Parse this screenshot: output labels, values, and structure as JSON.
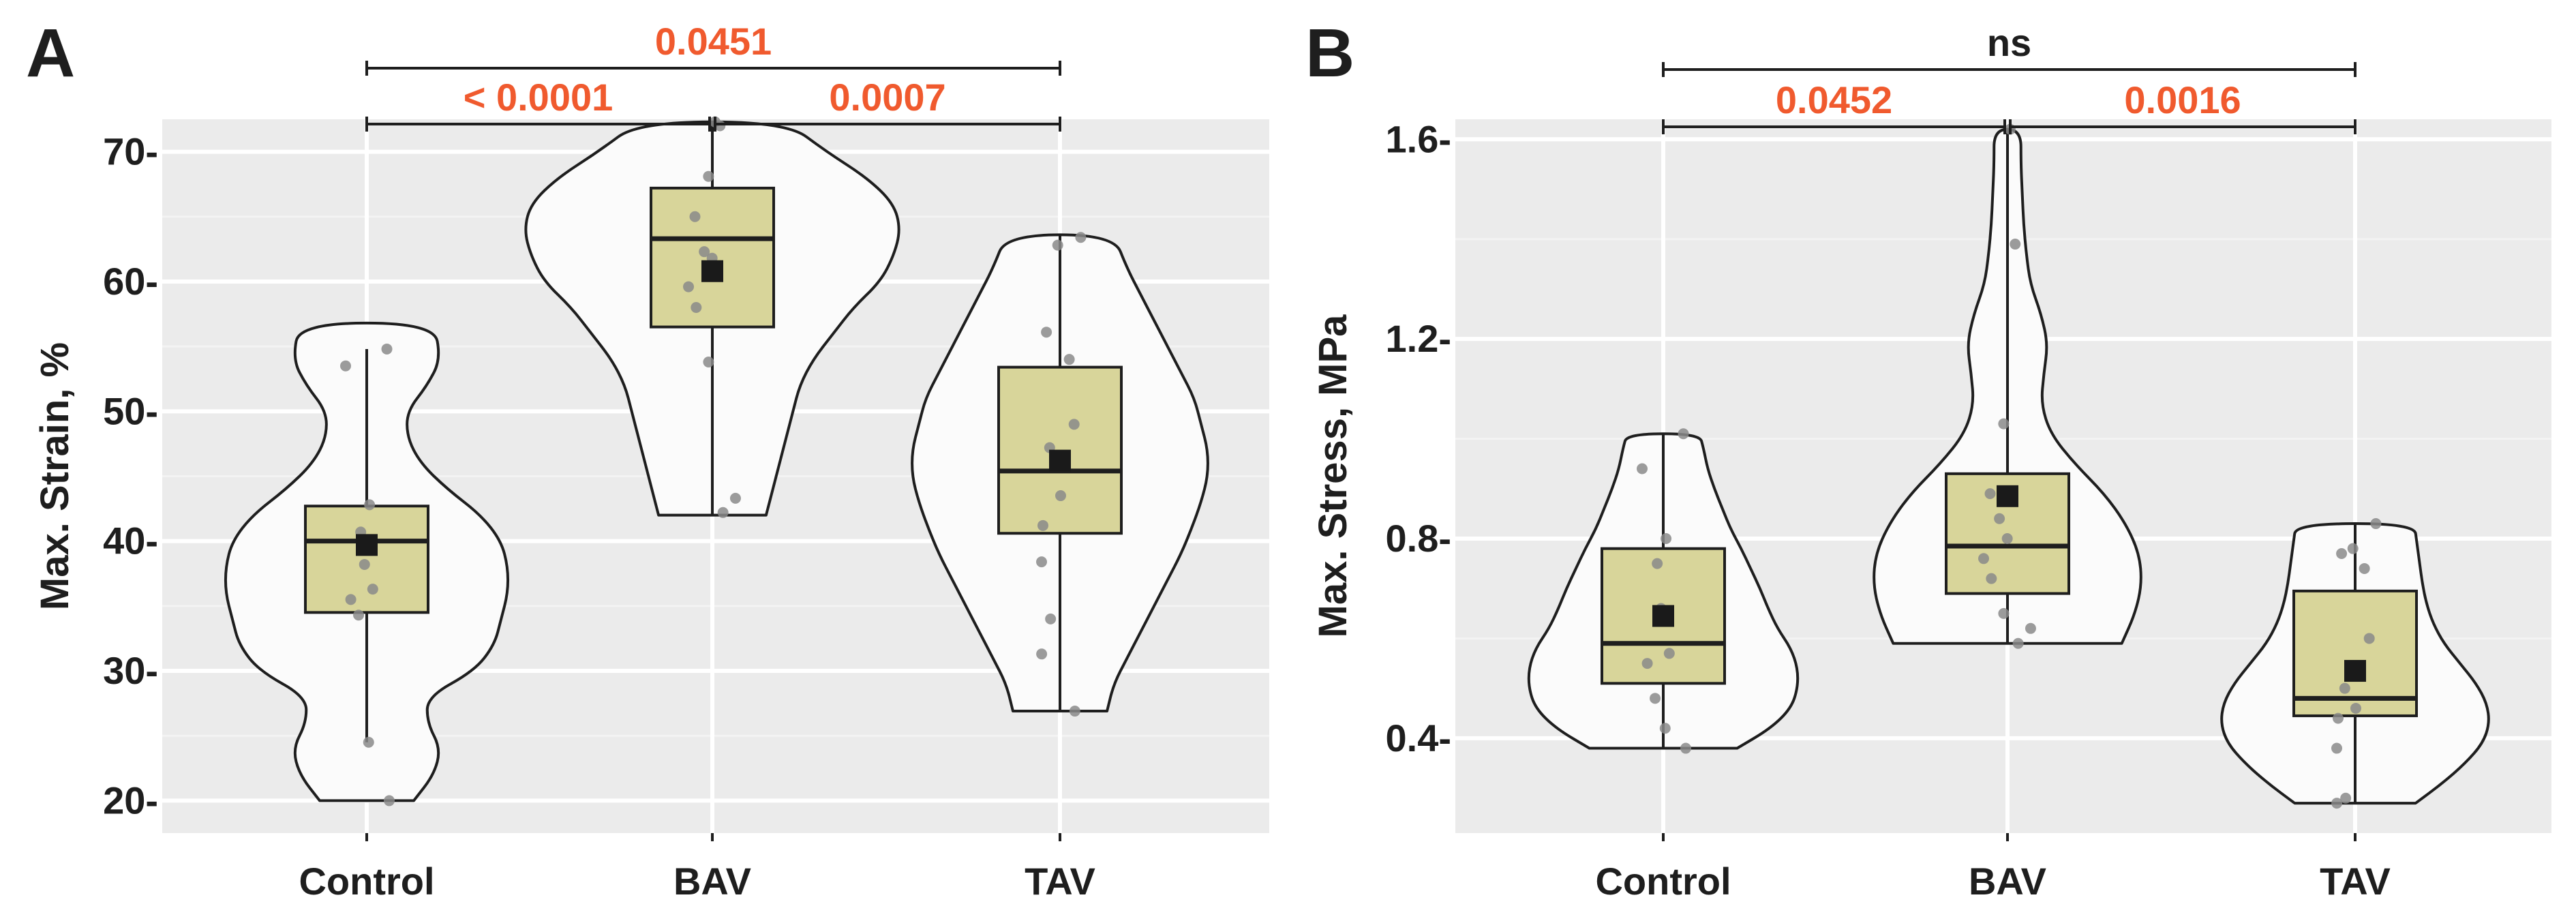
{
  "colors": {
    "panel_bg": "#ebebeb",
    "grid_major": "#ffffff",
    "grid_minor": "#f3f3f3",
    "violin_fill": "#fbfbfb",
    "violin_stroke": "#1e1e1e",
    "box_fill": "#d8d59a",
    "point": "#8a8a8a",
    "mean_marker": "#1a1a1a",
    "significant": "#f05a2e",
    "not_significant": "#1e1e1e",
    "text": "#1e1e1e"
  },
  "chart_data": [
    {
      "panel": "A",
      "type": "violin",
      "title": "",
      "xlabel": "",
      "ylabel": "Max. Strain, %",
      "ylim": [
        17.5,
        72.5
      ],
      "yticks": [
        20,
        30,
        40,
        50,
        60,
        70
      ],
      "ytick_labels": [
        "20-",
        "30-",
        "40-",
        "50-",
        "60-",
        "70-"
      ],
      "categories": [
        "Control",
        "BAV",
        "TAV"
      ],
      "groups": [
        {
          "name": "Control",
          "range": [
            20.0,
            56.8
          ],
          "density_y": [
            20.0,
            22.0,
            24.0,
            26.0,
            28.0,
            30.0,
            32.0,
            34.0,
            36.0,
            38.0,
            40.0,
            42.0,
            44.0,
            46.0,
            48.0,
            50.0,
            52.0,
            54.0,
            56.8
          ],
          "density_w": [
            0.35,
            0.5,
            0.55,
            0.45,
            0.45,
            0.8,
            0.95,
            1.0,
            1.05,
            1.05,
            1.0,
            0.85,
            0.6,
            0.4,
            0.3,
            0.3,
            0.45,
            0.55,
            0.5
          ],
          "box": {
            "q1": 34.5,
            "median": 40.0,
            "q3": 42.7,
            "whisker_low": 24.5,
            "whisker_high": 54.8,
            "mean": 39.7
          },
          "points": [
            54.8,
            53.5,
            42.8,
            40.7,
            38.2,
            36.3,
            35.5,
            34.3,
            24.5,
            20.0
          ]
        },
        {
          "name": "BAV",
          "range": [
            42.0,
            72.3
          ],
          "density_y": [
            42.0,
            44.0,
            46.0,
            48.0,
            50.0,
            52.0,
            54.0,
            56.0,
            58.0,
            60.0,
            62.0,
            64.0,
            66.0,
            68.0,
            70.0,
            72.3
          ],
          "density_w": [
            0.4,
            0.45,
            0.5,
            0.55,
            0.6,
            0.65,
            0.75,
            0.9,
            1.05,
            1.25,
            1.35,
            1.4,
            1.35,
            1.15,
            0.85,
            0.55
          ],
          "box": {
            "q1": 56.5,
            "median": 63.3,
            "q3": 67.2,
            "whisker_low": 42.0,
            "whisker_high": 72.3,
            "mean": 60.8
          },
          "points": [
            72.3,
            72.0,
            68.1,
            65.0,
            62.3,
            61.8,
            59.6,
            58.0,
            53.8,
            43.3,
            42.2
          ]
        },
        {
          "name": "TAV",
          "range": [
            26.9,
            63.6
          ],
          "density_y": [
            26.9,
            29.0,
            31.0,
            33.0,
            35.0,
            37.0,
            39.0,
            41.0,
            43.0,
            45.0,
            47.0,
            49.0,
            51.0,
            53.0,
            55.0,
            57.0,
            59.0,
            61.0,
            63.6
          ],
          "density_w": [
            0.35,
            0.4,
            0.5,
            0.6,
            0.7,
            0.8,
            0.9,
            0.98,
            1.05,
            1.1,
            1.1,
            1.05,
            1.0,
            0.9,
            0.8,
            0.7,
            0.6,
            0.5,
            0.4
          ],
          "box": {
            "q1": 40.6,
            "median": 45.4,
            "q3": 53.4,
            "whisker_low": 26.9,
            "whisker_high": 63.6,
            "mean": 46.2
          },
          "points": [
            63.4,
            62.8,
            56.1,
            54.0,
            49.0,
            47.2,
            43.5,
            41.2,
            38.4,
            34.0,
            31.3,
            26.9
          ]
        }
      ],
      "comparisons": [
        {
          "from": "Control",
          "to": "BAV",
          "label": "< 0.0001",
          "significant": true,
          "level": 1
        },
        {
          "from": "BAV",
          "to": "TAV",
          "label": "0.0007",
          "significant": true,
          "level": 1
        },
        {
          "from": "Control",
          "to": "TAV",
          "label": "0.0451",
          "significant": true,
          "level": 2
        }
      ]
    },
    {
      "panel": "B",
      "type": "violin",
      "title": "",
      "xlabel": "",
      "ylabel": "Max. Stress, MPa",
      "ylim": [
        0.21,
        1.64
      ],
      "yticks": [
        0.4,
        0.8,
        1.2,
        1.6
      ],
      "ytick_labels": [
        "0.4-",
        "0.8-",
        "1.2-",
        "1.6-"
      ],
      "categories": [
        "Control",
        "BAV",
        "TAV"
      ],
      "groups": [
        {
          "name": "Control",
          "range": [
            0.38,
            1.01
          ],
          "density_y": [
            0.38,
            0.42,
            0.46,
            0.5,
            0.54,
            0.58,
            0.62,
            0.66,
            0.7,
            0.74,
            0.78,
            0.82,
            0.86,
            0.9,
            0.94,
            0.98,
            1.01
          ],
          "density_w": [
            0.55,
            0.8,
            0.95,
            1.0,
            1.0,
            0.95,
            0.85,
            0.78,
            0.72,
            0.65,
            0.58,
            0.5,
            0.44,
            0.38,
            0.33,
            0.3,
            0.27
          ],
          "box": {
            "q1": 0.51,
            "median": 0.59,
            "q3": 0.78,
            "whisker_low": 0.38,
            "whisker_high": 1.01,
            "mean": 0.645
          },
          "points": [
            1.01,
            0.94,
            0.8,
            0.75,
            0.66,
            0.57,
            0.55,
            0.48,
            0.42,
            0.38
          ]
        },
        {
          "name": "BAV",
          "range": [
            0.59,
            1.62
          ],
          "density_y": [
            0.59,
            0.65,
            0.71,
            0.77,
            0.83,
            0.89,
            0.95,
            1.01,
            1.07,
            1.13,
            1.19,
            1.25,
            1.31,
            1.37,
            1.43,
            1.49,
            1.55,
            1.62
          ],
          "density_w": [
            0.85,
            0.95,
            1.0,
            0.98,
            0.88,
            0.72,
            0.5,
            0.32,
            0.25,
            0.27,
            0.3,
            0.25,
            0.17,
            0.14,
            0.12,
            0.11,
            0.1,
            0.1
          ],
          "box": {
            "q1": 0.69,
            "median": 0.785,
            "q3": 0.93,
            "whisker_low": 0.59,
            "whisker_high": 1.62,
            "mean": 0.885
          },
          "points": [
            1.62,
            1.39,
            1.03,
            0.89,
            0.84,
            0.8,
            0.76,
            0.72,
            0.65,
            0.62,
            0.59
          ]
        },
        {
          "name": "TAV",
          "range": [
            0.27,
            0.83
          ],
          "density_y": [
            0.27,
            0.31,
            0.35,
            0.39,
            0.43,
            0.47,
            0.51,
            0.55,
            0.59,
            0.63,
            0.67,
            0.71,
            0.75,
            0.79,
            0.83
          ],
          "density_w": [
            0.45,
            0.65,
            0.82,
            0.95,
            1.0,
            0.98,
            0.9,
            0.78,
            0.66,
            0.58,
            0.53,
            0.5,
            0.48,
            0.46,
            0.44
          ],
          "box": {
            "q1": 0.445,
            "median": 0.48,
            "q3": 0.695,
            "whisker_low": 0.27,
            "whisker_high": 0.83,
            "mean": 0.535
          },
          "points": [
            0.83,
            0.78,
            0.77,
            0.74,
            0.6,
            0.5,
            0.46,
            0.44,
            0.38,
            0.28,
            0.27
          ]
        }
      ],
      "comparisons": [
        {
          "from": "Control",
          "to": "BAV",
          "label": "0.0452",
          "significant": true,
          "level": 1
        },
        {
          "from": "BAV",
          "to": "TAV",
          "label": "0.0016",
          "significant": true,
          "level": 1
        },
        {
          "from": "Control",
          "to": "TAV",
          "label": "ns",
          "significant": false,
          "level": 2
        }
      ]
    }
  ]
}
